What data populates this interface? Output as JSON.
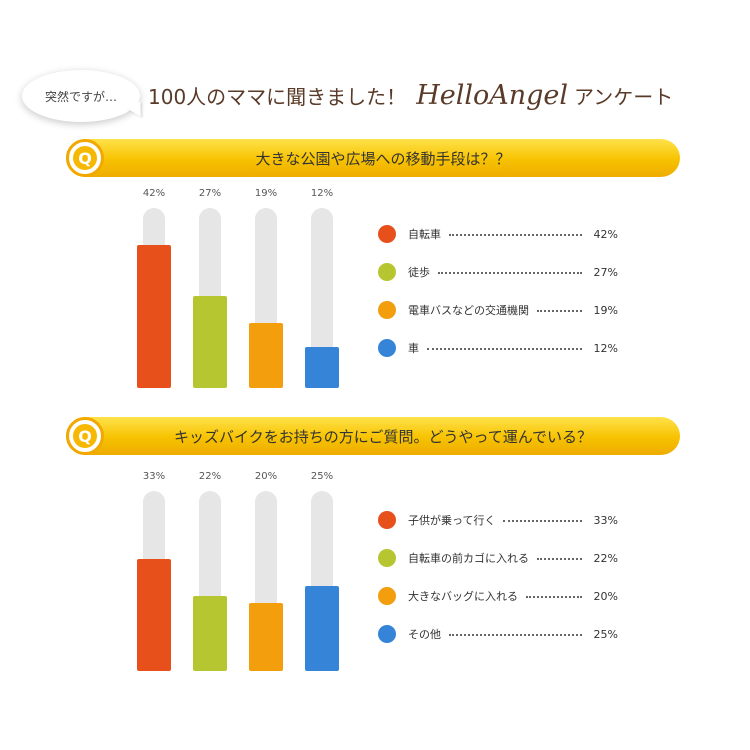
{
  "header": {
    "bubble_text": "突然ですが…",
    "main_text": "100人のママに聞きました！",
    "brand": "HelloAngel",
    "tail_text": "アンケート"
  },
  "colors": {
    "orange_red": "#e8501b",
    "lime": "#b6c630",
    "orange": "#f29e0d",
    "blue": "#3584d8",
    "banner": "#f7c200"
  },
  "icons": {
    "question": "q-badge-icon"
  },
  "q_badge": "Q",
  "chart_data": [
    {
      "type": "bar",
      "title": "大きな公園や広場への移動手段は？？",
      "categories": [
        "自転車",
        "徒歩",
        "電車バスなどの交通機関",
        "車"
      ],
      "values": [
        42,
        27,
        19,
        12
      ],
      "labels": [
        "42%",
        "27%",
        "19%",
        "12%"
      ],
      "colors": [
        "#e8501b",
        "#b6c630",
        "#f29e0d",
        "#3584d8"
      ],
      "ylim": [
        0,
        100
      ],
      "grid": false,
      "legend": "right"
    },
    {
      "type": "bar",
      "title": "キッズバイクをお持ちの方にご質問。どうやって運んでいる？",
      "categories": [
        "子供が乗って行く",
        "自転車の前カゴに入れる",
        "大きなバッグに入れる",
        "その他"
      ],
      "values": [
        33,
        22,
        20,
        25
      ],
      "labels": [
        "33%",
        "22%",
        "20%",
        "25%"
      ],
      "colors": [
        "#e8501b",
        "#b6c630",
        "#f29e0d",
        "#3584d8"
      ],
      "ylim": [
        0,
        100
      ],
      "grid": false,
      "legend": "right"
    }
  ]
}
